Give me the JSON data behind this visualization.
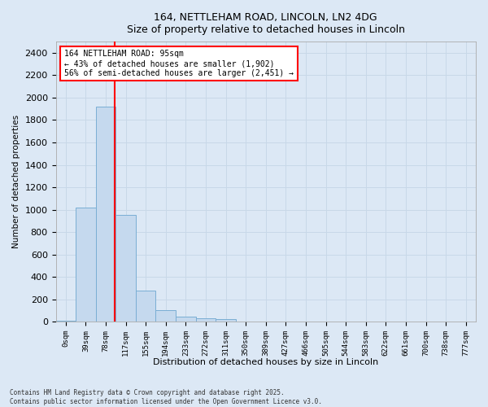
{
  "title_line1": "164, NETTLEHAM ROAD, LINCOLN, LN2 4DG",
  "title_line2": "Size of property relative to detached houses in Lincoln",
  "xlabel": "Distribution of detached houses by size in Lincoln",
  "ylabel": "Number of detached properties",
  "categories": [
    "0sqm",
    "39sqm",
    "78sqm",
    "117sqm",
    "155sqm",
    "194sqm",
    "233sqm",
    "272sqm",
    "311sqm",
    "350sqm",
    "389sqm",
    "427sqm",
    "466sqm",
    "505sqm",
    "544sqm",
    "583sqm",
    "622sqm",
    "661sqm",
    "700sqm",
    "738sqm",
    "777sqm"
  ],
  "bar_heights": [
    10,
    1020,
    1920,
    950,
    280,
    100,
    45,
    30,
    20,
    5,
    2,
    0,
    0,
    0,
    0,
    0,
    0,
    0,
    0,
    0,
    0
  ],
  "bar_color": "#c5d9ee",
  "bar_edge_color": "#7aaed4",
  "vline_x_index": 2.43,
  "vline_color": "red",
  "annotation_text": "164 NETTLEHAM ROAD: 95sqm\n← 43% of detached houses are smaller (1,902)\n56% of semi-detached houses are larger (2,451) →",
  "annotation_box_color": "white",
  "annotation_box_edge": "red",
  "ylim": [
    0,
    2500
  ],
  "yticks": [
    0,
    200,
    400,
    600,
    800,
    1000,
    1200,
    1400,
    1600,
    1800,
    2000,
    2200,
    2400
  ],
  "grid_color": "#c8d8e8",
  "bg_color": "#dce8f5",
  "footer_text": "Contains HM Land Registry data © Crown copyright and database right 2025.\nContains public sector information licensed under the Open Government Licence v3.0."
}
